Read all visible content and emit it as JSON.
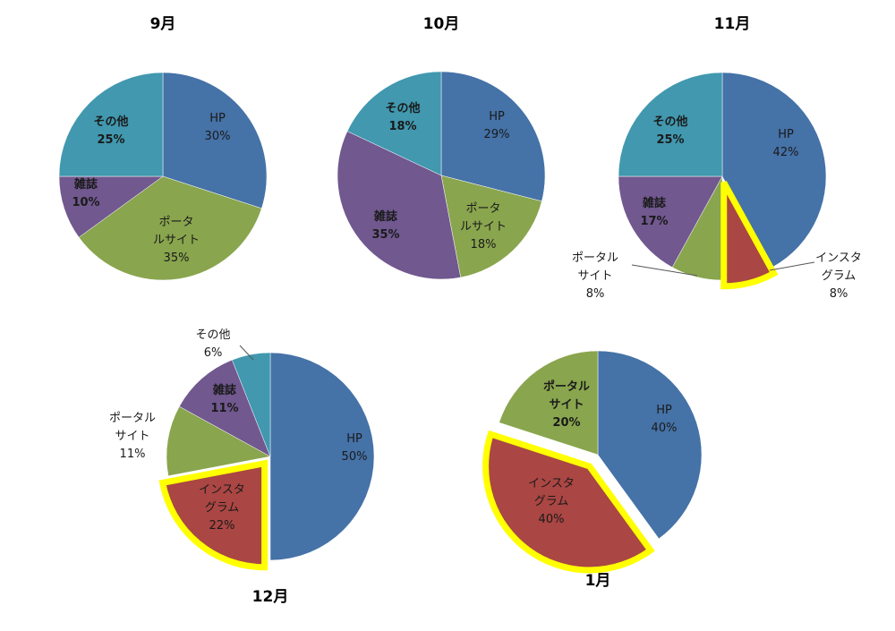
{
  "chart_data": [
    {
      "type": "pie",
      "title": "9月",
      "slices": [
        {
          "label": "HP",
          "value": 30,
          "pct": "30%",
          "color": "#4572A7"
        },
        {
          "label": "ポータルサイト",
          "value": 35,
          "pct": "35%",
          "color": "#89A54E"
        },
        {
          "label": "雑誌",
          "value": 10,
          "pct": "10%",
          "color": "#71588F"
        },
        {
          "label": "その他",
          "value": 25,
          "pct": "25%",
          "color": "#4198AF"
        }
      ]
    },
    {
      "type": "pie",
      "title": "10月",
      "slices": [
        {
          "label": "HP",
          "value": 29,
          "pct": "29%",
          "color": "#4572A7"
        },
        {
          "label": "ポータルサイト",
          "value": 18,
          "pct": "18%",
          "color": "#89A54E"
        },
        {
          "label": "雑誌",
          "value": 35,
          "pct": "35%",
          "color": "#71588F"
        },
        {
          "label": "その他",
          "value": 18,
          "pct": "18%",
          "color": "#4198AF"
        }
      ]
    },
    {
      "type": "pie",
      "title": "11月",
      "slices": [
        {
          "label": "HP",
          "value": 42,
          "pct": "42%",
          "color": "#4572A7"
        },
        {
          "label": "インスタグラム",
          "value": 8,
          "pct": "8%",
          "color": "#AA4643",
          "highlight": true
        },
        {
          "label": "ポータルサイト",
          "value": 8,
          "pct": "8%",
          "color": "#89A54E"
        },
        {
          "label": "雑誌",
          "value": 17,
          "pct": "17%",
          "color": "#71588F"
        },
        {
          "label": "その他",
          "value": 25,
          "pct": "25%",
          "color": "#4198AF"
        }
      ]
    },
    {
      "type": "pie",
      "title": "12月",
      "slices": [
        {
          "label": "HP",
          "value": 50,
          "pct": "50%",
          "color": "#4572A7"
        },
        {
          "label": "インスタグラム",
          "value": 22,
          "pct": "22%",
          "color": "#AA4643",
          "highlight": true
        },
        {
          "label": "ポータルサイト",
          "value": 11,
          "pct": "11%",
          "color": "#89A54E"
        },
        {
          "label": "雑誌",
          "value": 11,
          "pct": "11%",
          "color": "#71588F"
        },
        {
          "label": "その他",
          "value": 6,
          "pct": "6%",
          "color": "#4198AF"
        }
      ]
    },
    {
      "type": "pie",
      "title": "1月",
      "slices": [
        {
          "label": "HP",
          "value": 40,
          "pct": "40%",
          "color": "#4572A7"
        },
        {
          "label": "インスタグラム",
          "value": 40,
          "pct": "40%",
          "color": "#AA4643",
          "highlight": true
        },
        {
          "label": "ポータルサイト",
          "value": 20,
          "pct": "20%",
          "color": "#89A54E"
        }
      ]
    }
  ],
  "colors": {
    "highlight_outline": "#FFFF00"
  }
}
